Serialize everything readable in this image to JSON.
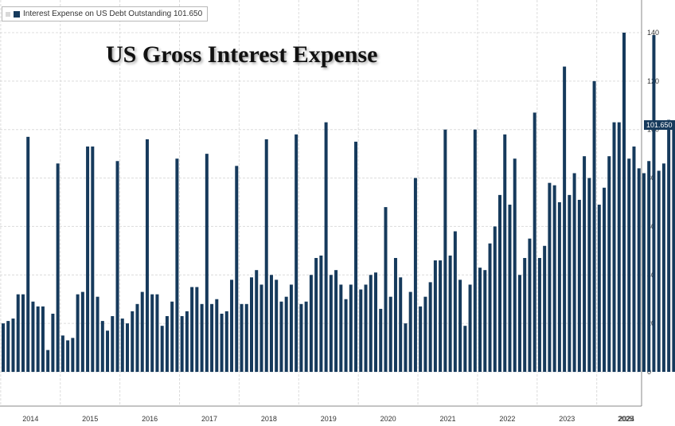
{
  "legend": {
    "label": "Interest Expense on US Debt Outstanding 101.650"
  },
  "title": "US Gross Interest Expense",
  "last_value_label": "101.650",
  "colors": {
    "bar": "#163a5c",
    "grid": "#dcdcdc",
    "axis_text": "#333333"
  },
  "chart_data": {
    "type": "bar",
    "title": "US Gross Interest Expense",
    "series": [
      {
        "name": "Interest Expense on US Debt Outstanding",
        "values": [
          20,
          21,
          22,
          32,
          32,
          97,
          29,
          27,
          27,
          9,
          24,
          86,
          15,
          13,
          14,
          32,
          33,
          93,
          93,
          31,
          21,
          17,
          23,
          87,
          22,
          20,
          25,
          28,
          33,
          96,
          32,
          32,
          19,
          23,
          29,
          88,
          23,
          25,
          35,
          35,
          28,
          90,
          28,
          30,
          24,
          25,
          38,
          85,
          28,
          28,
          39,
          42,
          36,
          96,
          40,
          38,
          29,
          31,
          36,
          98,
          28,
          29,
          40,
          47,
          48,
          103,
          40,
          42,
          36,
          30,
          36,
          95,
          34,
          36,
          40,
          41,
          26,
          68,
          31,
          47,
          39,
          20,
          33,
          80,
          27,
          31,
          37,
          46,
          46,
          100,
          48,
          58,
          38,
          19,
          36,
          100,
          43,
          42,
          53,
          60,
          73,
          98,
          69,
          88,
          40,
          47,
          55,
          107,
          47,
          52,
          78,
          77,
          70,
          126,
          73,
          82,
          71,
          89,
          80,
          120,
          69,
          76,
          89,
          103,
          103,
          140,
          88,
          93,
          84,
          82,
          87,
          139,
          83,
          86,
          104,
          101.65
        ]
      }
    ],
    "x_axis": {
      "labels": [
        "2014",
        "2015",
        "2016",
        "2017",
        "2018",
        "2019",
        "2020",
        "2021",
        "2022",
        "2023",
        "2024",
        "2025"
      ]
    },
    "y_axis": {
      "ticks": [
        0,
        20,
        40,
        60,
        80,
        100,
        120,
        140
      ],
      "range": [
        -13,
        152
      ],
      "position": "right"
    },
    "grid": true,
    "legend_position": "top-left"
  }
}
